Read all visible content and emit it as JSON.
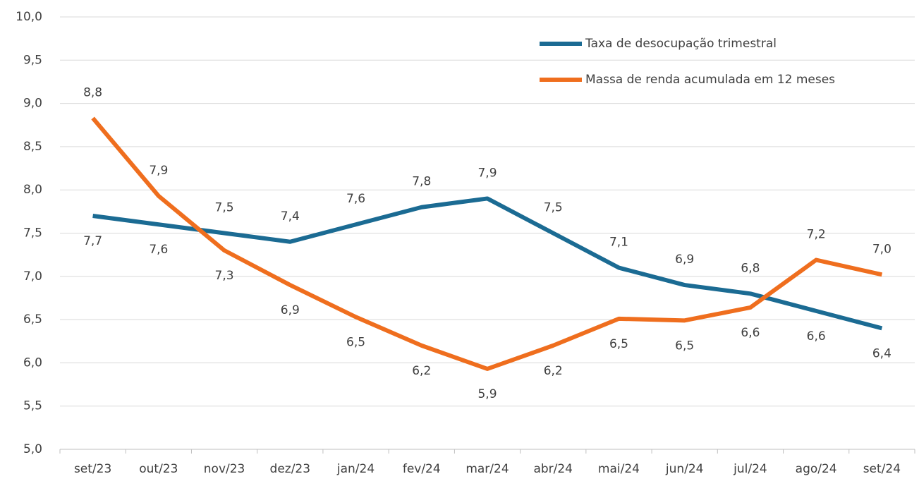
{
  "chart_data": {
    "type": "line",
    "categories": [
      "set/23",
      "out/23",
      "nov/23",
      "dez/23",
      "jan/24",
      "fev/24",
      "mar/24",
      "abr/24",
      "mai/24",
      "jun/24",
      "jul/24",
      "ago/24",
      "set/24"
    ],
    "series": [
      {
        "name": "Taxa de desocupação trimestral",
        "color": "#1b6b93",
        "values": [
          7.7,
          7.6,
          7.5,
          7.4,
          7.6,
          7.8,
          7.9,
          7.5,
          7.1,
          6.9,
          6.8,
          6.6,
          6.4
        ],
        "value_labels": [
          "7,7",
          "7,6",
          "7,5",
          "7,4",
          "7,6",
          "7,8",
          "7,9",
          "7,5",
          "7,1",
          "6,9",
          "6,8",
          "6,6",
          "6,4"
        ]
      },
      {
        "name": "Massa de renda acumulada em 12 meses",
        "color": "#ef6e1e",
        "values": [
          8.83,
          7.93,
          7.3,
          6.9,
          6.53,
          6.2,
          5.93,
          6.2,
          6.51,
          6.49,
          6.64,
          7.19,
          7.02
        ],
        "value_labels": [
          "8,8",
          "7,9",
          "7,3",
          "6,9",
          "6,5",
          "6,2",
          "5,9",
          "6,2",
          "6,5",
          "6,5",
          "6,6",
          "7,2",
          "7,0"
        ]
      }
    ],
    "ylim": [
      5.0,
      10.0
    ],
    "yticks": [
      {
        "value": 5.0,
        "label": "5,0"
      },
      {
        "value": 5.5,
        "label": "5,5"
      },
      {
        "value": 6.0,
        "label": "6,0"
      },
      {
        "value": 6.5,
        "label": "6,5"
      },
      {
        "value": 7.0,
        "label": "7,0"
      },
      {
        "value": 7.5,
        "label": "7,5"
      },
      {
        "value": 8.0,
        "label": "8,0"
      },
      {
        "value": 8.5,
        "label": "8,5"
      },
      {
        "value": 9.0,
        "label": "9,0"
      },
      {
        "value": 9.5,
        "label": "9,5"
      },
      {
        "value": 10.0,
        "label": "10,0"
      }
    ],
    "grid": true,
    "legend": "top-right"
  }
}
